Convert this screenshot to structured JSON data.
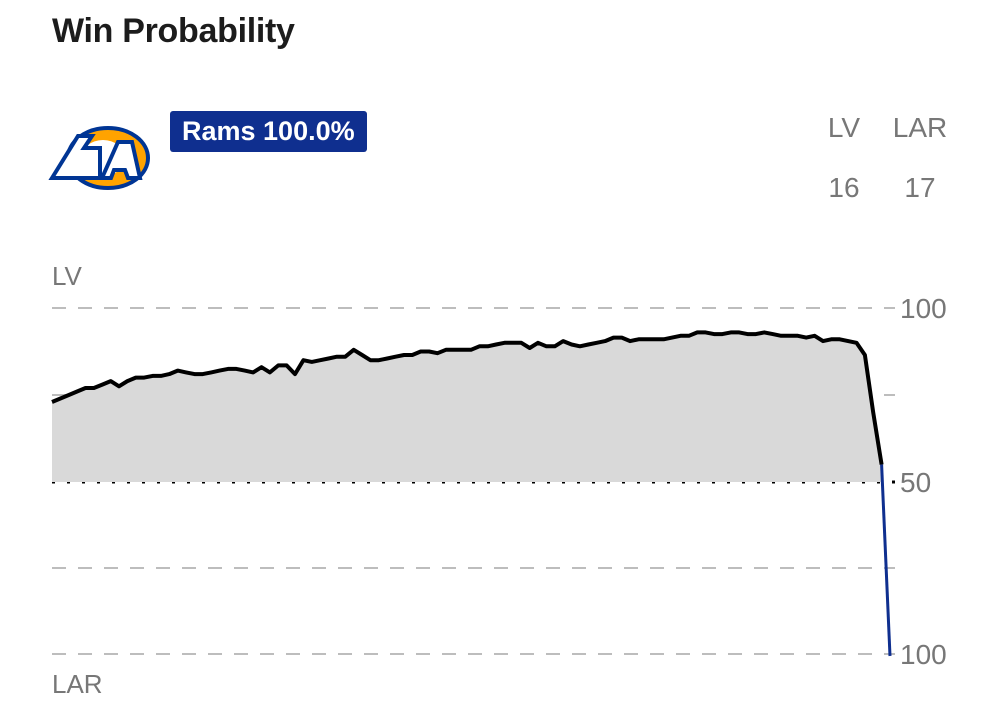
{
  "header": {
    "title": "Win Probability"
  },
  "team": {
    "logo_icon": "rams-la-logo-icon",
    "badge_label": "Rams 100.0%",
    "badge_color": "#0f2f8f"
  },
  "scoreboard": {
    "away": {
      "abbr": "LV",
      "score": "16"
    },
    "home": {
      "abbr": "LAR",
      "score": "17"
    }
  },
  "chart_data": {
    "type": "area",
    "title": "Win Probability",
    "top_team_label": "LV",
    "bottom_team_label": "LAR",
    "y_ticks": [
      "100",
      "50",
      "100"
    ],
    "ylim": [
      -100,
      100
    ],
    "grid": true,
    "series": [
      {
        "color": "#000000",
        "fill": "#d9d9d9",
        "final_color": "#0f2f8f",
        "x": [
          0,
          1,
          2,
          3,
          4,
          5,
          6,
          7,
          8,
          9,
          10,
          11,
          12,
          13,
          14,
          15,
          16,
          17,
          18,
          19,
          20,
          21,
          22,
          23,
          24,
          25,
          26,
          27,
          28,
          29,
          30,
          31,
          32,
          33,
          34,
          35,
          36,
          37,
          38,
          39,
          40,
          41,
          42,
          43,
          44,
          45,
          46,
          47,
          48,
          49,
          50,
          51,
          52,
          53,
          54,
          55,
          56,
          57,
          58,
          59,
          60,
          61,
          62,
          63,
          64,
          65,
          66,
          67,
          68,
          69,
          70,
          71,
          72,
          73,
          74,
          75,
          76,
          77,
          78,
          79,
          80,
          81,
          82,
          83,
          84,
          85,
          86,
          87,
          88,
          89,
          90,
          91,
          92,
          93,
          94,
          95,
          96,
          97,
          98,
          99,
          100
        ],
        "values": [
          46,
          48,
          50,
          52,
          54,
          54,
          56,
          58,
          55,
          58,
          60,
          60,
          61,
          61,
          62,
          64,
          63,
          62,
          62,
          63,
          64,
          65,
          65,
          64,
          63,
          66,
          63,
          67,
          67,
          62,
          70,
          69,
          70,
          71,
          72,
          72,
          76,
          73,
          70,
          70,
          71,
          72,
          73,
          73,
          75,
          75,
          74,
          76,
          76,
          76,
          76,
          78,
          78,
          79,
          80,
          80,
          80,
          77,
          80,
          78,
          78,
          81,
          79,
          78,
          79,
          80,
          81,
          83,
          83,
          81,
          82,
          82,
          82,
          82,
          83,
          84,
          84,
          86,
          86,
          85,
          85,
          86,
          86,
          85,
          85,
          86,
          85,
          84,
          84,
          84,
          83,
          84,
          81,
          82,
          82,
          81,
          80,
          73,
          40,
          10,
          -100
        ]
      }
    ]
  }
}
